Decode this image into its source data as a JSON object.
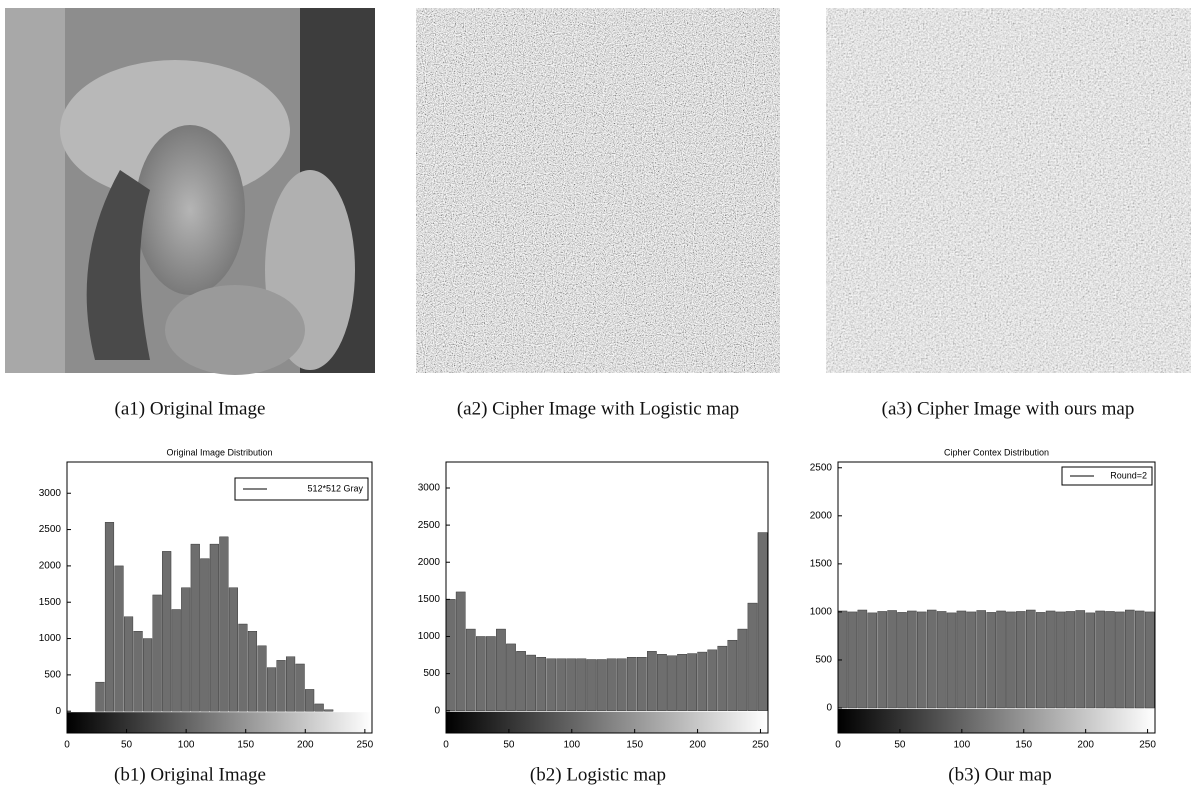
{
  "images": [
    {
      "caption": "(a1) Original Image"
    },
    {
      "caption": "(a2) Cipher Image with Logistic map"
    },
    {
      "caption": "(a3) Cipher Image with ours map"
    }
  ],
  "chart_data": [
    {
      "type": "histogram",
      "title": "Original Image Distribution",
      "caption": "(b1) Original Image",
      "bins": [
        0,
        8,
        16,
        24,
        32,
        40,
        48,
        56,
        64,
        72,
        80,
        88,
        96,
        104,
        112,
        120,
        128,
        136,
        144,
        152,
        160,
        168,
        176,
        184,
        192,
        200,
        208,
        216,
        224,
        232,
        240,
        248,
        256
      ],
      "series": [
        {
          "name": "512*512 Gray",
          "color": "#6e6e6e",
          "values": [
            0,
            0,
            0,
            400,
            2600,
            2000,
            1300,
            1100,
            1000,
            1600,
            2200,
            1400,
            1700,
            2300,
            2100,
            2300,
            2400,
            1700,
            1200,
            1100,
            900,
            600,
            700,
            750,
            650,
            300,
            100,
            20,
            0,
            0,
            0,
            0
          ]
        }
      ],
      "xlim": [
        0,
        256
      ],
      "xticks": [
        0,
        50,
        100,
        150,
        200,
        250
      ],
      "ylim": [
        -300,
        3430
      ],
      "yticks": [
        0,
        500,
        1000,
        1500,
        2000,
        2500,
        3000
      ]
    },
    {
      "type": "histogram",
      "caption": "(b2) Logistic map",
      "bins": [
        0,
        8,
        16,
        24,
        32,
        40,
        48,
        56,
        64,
        72,
        80,
        88,
        96,
        104,
        112,
        120,
        128,
        136,
        144,
        152,
        160,
        168,
        176,
        184,
        192,
        200,
        208,
        216,
        224,
        232,
        240,
        248,
        256
      ],
      "series": [
        {
          "color": "#6e6e6e",
          "values": [
            1500,
            1600,
            1100,
            1000,
            1000,
            1100,
            900,
            800,
            750,
            720,
            700,
            700,
            700,
            700,
            690,
            690,
            700,
            700,
            720,
            720,
            800,
            760,
            740,
            760,
            770,
            790,
            820,
            870,
            950,
            1100,
            1450,
            2400
          ]
        }
      ],
      "xlim": [
        0,
        256
      ],
      "xticks": [
        0,
        50,
        100,
        150,
        200,
        250
      ],
      "ylim": [
        -300,
        3350
      ],
      "yticks": [
        0,
        500,
        1000,
        1500,
        2000,
        2500,
        3000
      ]
    },
    {
      "type": "histogram",
      "title": "Cipher Contex Distribution",
      "caption": "(b3) Our map",
      "bins": [
        0,
        8,
        16,
        24,
        32,
        40,
        48,
        56,
        64,
        72,
        80,
        88,
        96,
        104,
        112,
        120,
        128,
        136,
        144,
        152,
        160,
        168,
        176,
        184,
        192,
        200,
        208,
        216,
        224,
        232,
        240,
        248,
        256
      ],
      "series": [
        {
          "name": "Round=2",
          "color": "#6e6e6e",
          "values": [
            1010,
            1000,
            1020,
            990,
            1005,
            1015,
            995,
            1010,
            1000,
            1020,
            1005,
            990,
            1010,
            1000,
            1015,
            995,
            1010,
            1000,
            1005,
            1020,
            995,
            1010,
            1000,
            1005,
            1015,
            990,
            1010,
            1005,
            1000,
            1020,
            1010,
            1000
          ]
        }
      ],
      "xlim": [
        0,
        256
      ],
      "xticks": [
        0,
        50,
        100,
        150,
        200,
        250
      ],
      "ylim": [
        -260,
        2560
      ],
      "yticks": [
        0,
        500,
        1000,
        1500,
        2000,
        2500
      ]
    }
  ]
}
